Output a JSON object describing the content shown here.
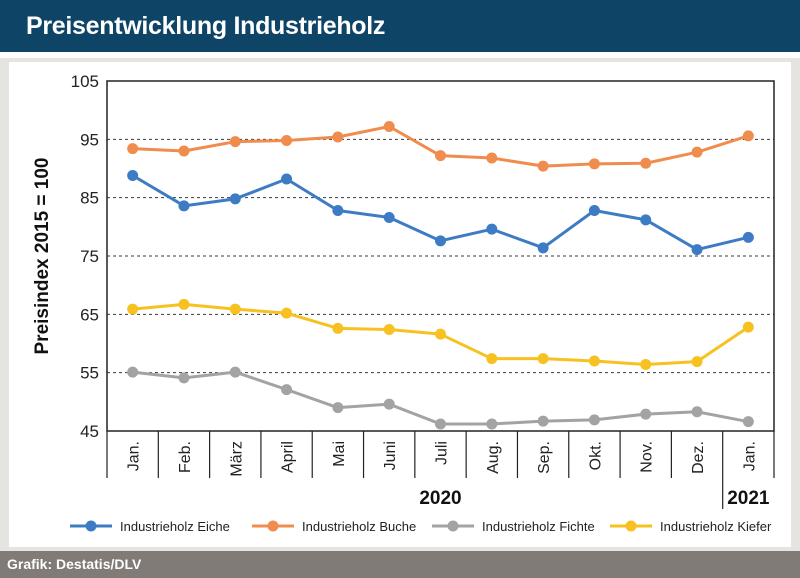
{
  "header": {
    "title": "Preisentwicklung Industrieholz"
  },
  "footer": {
    "source": "Grafik: Destatis/DLV"
  },
  "chart_data": {
    "type": "line",
    "ylabel": "Preisindex 2015 = 100",
    "ylim": [
      45,
      105
    ],
    "yticks": [
      45,
      55,
      65,
      75,
      85,
      95,
      105
    ],
    "grid": "horizontal dashed",
    "categories": [
      "Jan.",
      "Feb.",
      "März",
      "April",
      "Mai",
      "Juni",
      "Juli",
      "Aug.",
      "Sep.",
      "Okt.",
      "Nov.",
      "Dez.",
      "Jan."
    ],
    "year_labels": [
      {
        "label": "2020",
        "category_index": 6
      },
      {
        "label": "2021",
        "category_index": 12
      }
    ],
    "legend_position": "bottom",
    "series": [
      {
        "name": "Industrieholz Eiche",
        "color": "#3d7cc4",
        "values": [
          88.8,
          83.6,
          84.8,
          88.2,
          82.8,
          81.6,
          77.6,
          79.6,
          76.4,
          82.8,
          81.2,
          76.1,
          78.2
        ]
      },
      {
        "name": "Industrieholz Buche",
        "color": "#f08c4e",
        "values": [
          93.4,
          93.0,
          94.6,
          94.8,
          95.4,
          97.2,
          92.2,
          91.8,
          90.4,
          90.8,
          90.9,
          92.8,
          95.6
        ]
      },
      {
        "name": "Industrieholz Fichte",
        "color": "#a3a3a3",
        "values": [
          55.1,
          54.1,
          55.1,
          52.1,
          49.0,
          49.6,
          46.2,
          46.2,
          46.7,
          46.9,
          47.9,
          48.3,
          46.6
        ]
      },
      {
        "name": "Industrieholz Kiefer",
        "color": "#f7c221",
        "values": [
          65.9,
          66.7,
          65.9,
          65.2,
          62.6,
          62.4,
          61.6,
          57.4,
          57.4,
          57.0,
          56.4,
          56.9,
          62.8
        ]
      }
    ]
  }
}
